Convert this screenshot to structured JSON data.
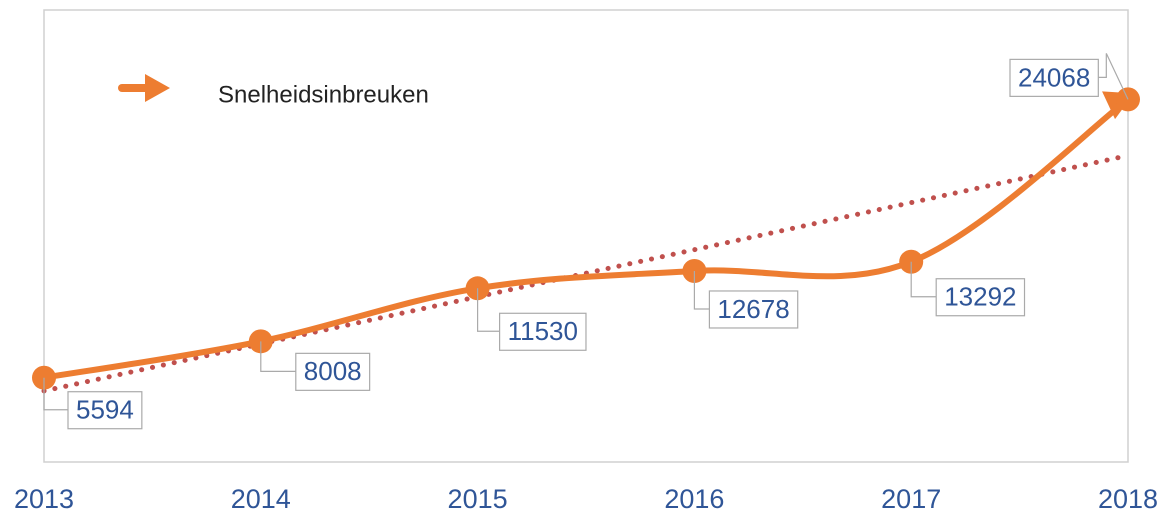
{
  "chart_data": {
    "type": "line",
    "categories": [
      "2013",
      "2014",
      "2015",
      "2016",
      "2017",
      "2018"
    ],
    "series": [
      {
        "name": "Snelheidsinbreuken",
        "color": "#ed7d31",
        "values": [
          5594,
          8008,
          11530,
          12678,
          13292,
          24068
        ]
      }
    ],
    "trendline": "linear",
    "trendline_color": "#c0504d",
    "ylim": [
      0,
      30000
    ],
    "yticks": [
      0,
      5000,
      10000,
      15000,
      20000,
      25000,
      30000
    ],
    "grid": true,
    "legend": "top-left"
  }
}
